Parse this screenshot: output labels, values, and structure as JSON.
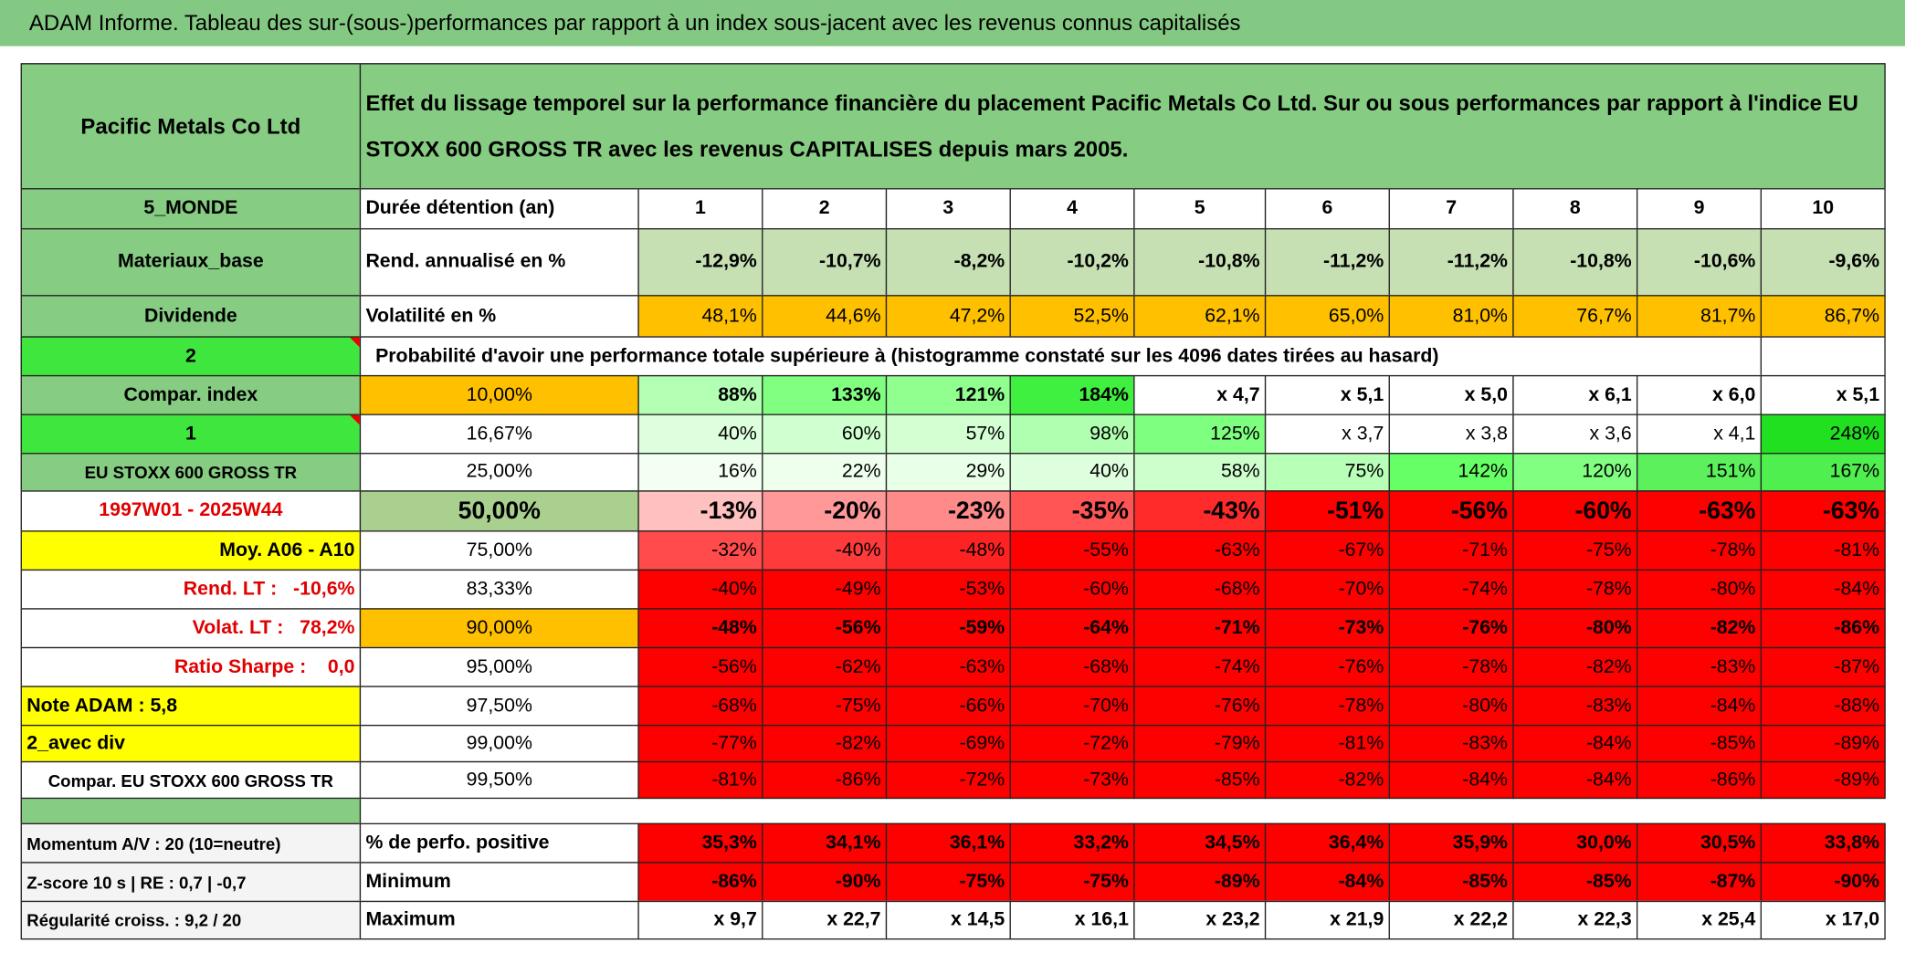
{
  "title": "ADAM Informe. Tableau des sur-(sous-)performances par rapport à un index sous-jacent avec les revenus connus capitalisés",
  "table": {
    "header": {
      "name": "Pacific Metals Co Ltd",
      "description": "Effet du lissage temporel sur la performance financière du placement Pacific Metals Co Ltd. Sur ou sous performances par rapport à l'indice EU STOXX 600 GROSS TR avec les revenus CAPITALISES depuis mars 2005."
    },
    "rows": [
      [
        "5_MONDE",
        "Durée détention (an)",
        "1",
        "2",
        "3",
        "4",
        "5",
        "6",
        "7",
        "8",
        "9",
        "10"
      ],
      [
        "Materiaux_base",
        "Rend. annualisé en %",
        "-12,9%",
        "-10,7%",
        "-8,2%",
        "-10,2%",
        "-10,8%",
        "-11,2%",
        "-11,2%",
        "-10,8%",
        "-10,6%",
        "-9,6%"
      ],
      [
        "Dividende",
        "Volatilité en %",
        "48,1%",
        "44,6%",
        "47,2%",
        "52,5%",
        "62,1%",
        "65,0%",
        "81,0%",
        "76,7%",
        "81,7%",
        "86,7%"
      ],
      [
        "2",
        "Probabilité d'avoir une performance totale supérieure à (histogramme constaté sur les 4096 dates tirées au hasard)"
      ],
      [
        "Compar. index",
        "10,00%",
        "88%",
        "133%",
        "121%",
        "184%",
        "x 4,7",
        "x 5,1",
        "x 5,0",
        "x 6,1",
        "x 6,0",
        "x 5,1"
      ],
      [
        "1",
        "16,67%",
        "40%",
        "60%",
        "57%",
        "98%",
        "125%",
        "x 3,7",
        "x 3,8",
        "x 3,6",
        "x 4,1",
        "248%"
      ],
      [
        "EU STOXX 600 GROSS TR",
        "25,00%",
        "16%",
        "22%",
        "29%",
        "40%",
        "58%",
        "75%",
        "142%",
        "120%",
        "151%",
        "167%"
      ],
      [
        "1997W01 - 2025W44",
        "50,00%",
        "-13%",
        "-20%",
        "-23%",
        "-35%",
        "-43%",
        "-51%",
        "-56%",
        "-60%",
        "-63%",
        "-63%"
      ],
      [
        "Moy. A06 - A10",
        "75,00%",
        "-32%",
        "-40%",
        "-48%",
        "-55%",
        "-63%",
        "-67%",
        "-71%",
        "-75%",
        "-78%",
        "-81%"
      ],
      [
        "Rend. LT :   -10,6%",
        "83,33%",
        "-40%",
        "-49%",
        "-53%",
        "-60%",
        "-68%",
        "-70%",
        "-74%",
        "-78%",
        "-80%",
        "-84%"
      ],
      [
        "Volat. LT :   78,2%",
        "90,00%",
        "-48%",
        "-56%",
        "-59%",
        "-64%",
        "-71%",
        "-73%",
        "-76%",
        "-80%",
        "-82%",
        "-86%"
      ],
      [
        "Ratio Sharpe :    0,0",
        "95,00%",
        "-56%",
        "-62%",
        "-63%",
        "-68%",
        "-74%",
        "-76%",
        "-78%",
        "-82%",
        "-83%",
        "-87%"
      ],
      [
        "Note ADAM : 5,8",
        "97,50%",
        "-68%",
        "-75%",
        "-66%",
        "-70%",
        "-76%",
        "-78%",
        "-80%",
        "-83%",
        "-84%",
        "-88%"
      ],
      [
        "2_avec div",
        "99,00%",
        "-77%",
        "-82%",
        "-69%",
        "-72%",
        "-79%",
        "-81%",
        "-83%",
        "-84%",
        "-85%",
        "-89%"
      ],
      [
        "Compar. EU STOXX 600 GROSS TR",
        "99,50%",
        "-81%",
        "-86%",
        "-72%",
        "-73%",
        "-85%",
        "-82%",
        "-84%",
        "-84%",
        "-86%",
        "-89%"
      ],
      [
        "Momentum A/V : 20 (10=neutre)",
        "% de perfo. positive",
        "35,3%",
        "34,1%",
        "36,1%",
        "33,2%",
        "34,5%",
        "36,4%",
        "35,9%",
        "30,0%",
        "30,5%",
        "33,8%"
      ],
      [
        "Z-score 10 s | RE : 0,7 | -0,7",
        "Minimum",
        "-86%",
        "-90%",
        "-75%",
        "-75%",
        "-89%",
        "-84%",
        "-85%",
        "-85%",
        "-87%",
        "-90%"
      ],
      [
        "Régularité croiss. : 9,2 / 20",
        "Maximum",
        "x 9,7",
        "x 22,7",
        "x 14,5",
        "x 16,1",
        "x 23,2",
        "x 21,9",
        "x 22,2",
        "x 22,3",
        "x 25,4",
        "x 17,0"
      ]
    ]
  }
}
